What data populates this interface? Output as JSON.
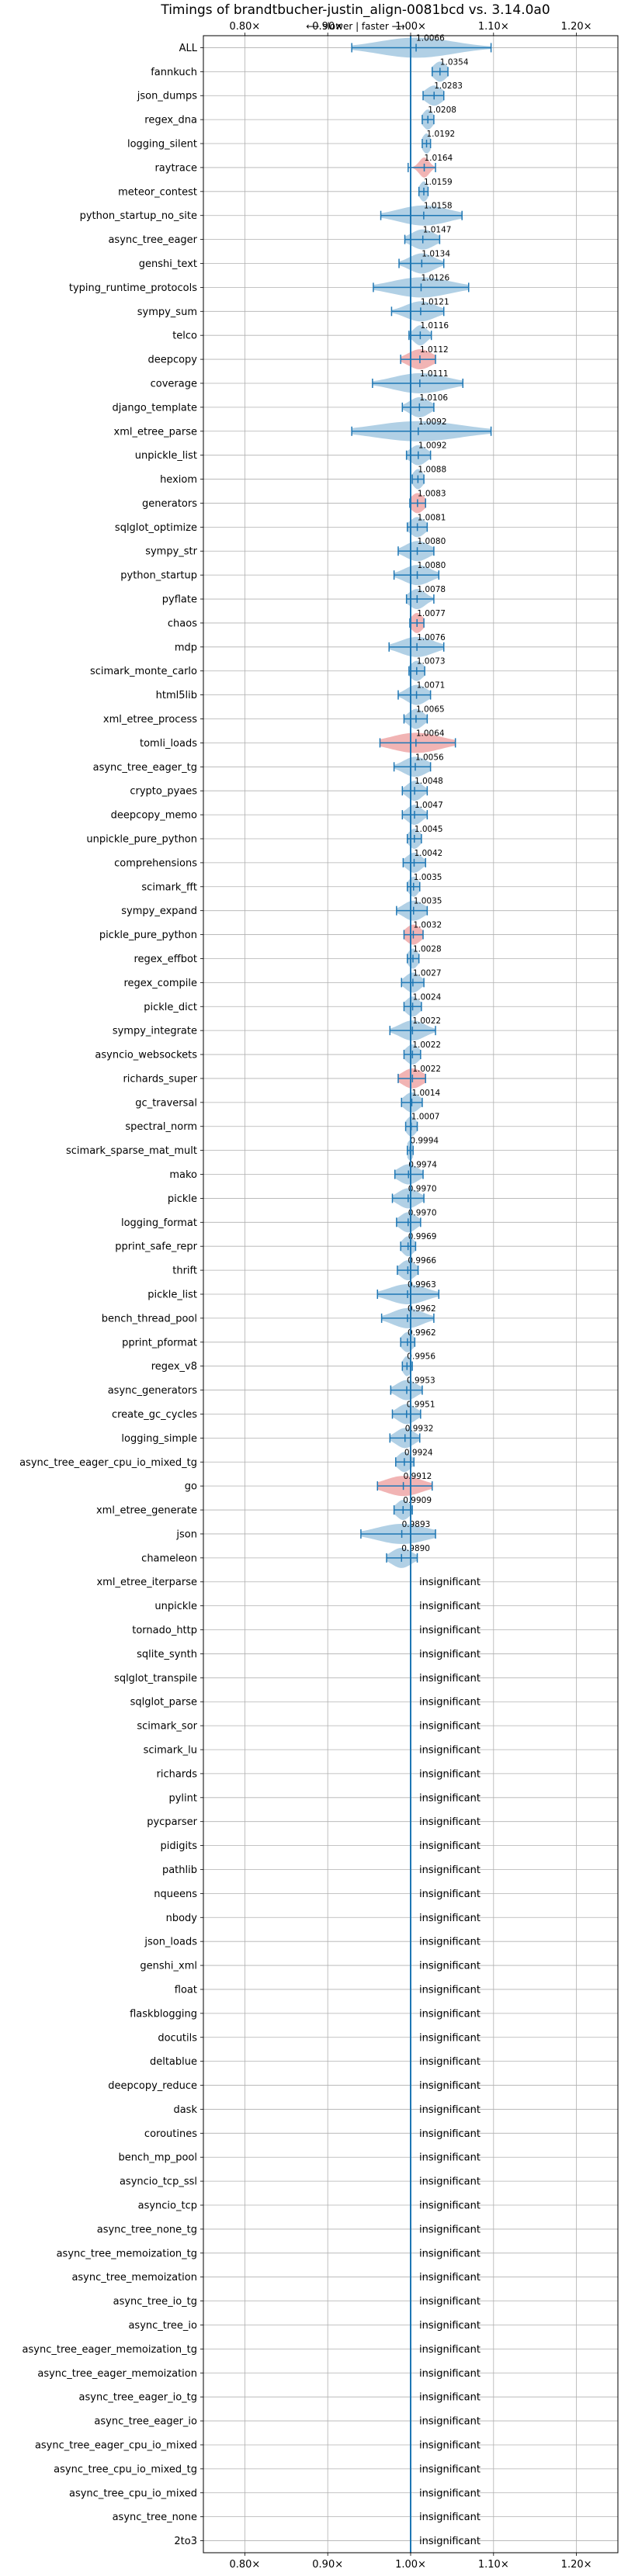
{
  "chart_data": {
    "type": "violin",
    "title": "Timings of brandtbucher-justin_align-0081bcd vs. 3.14.0a0",
    "subtitle": "⟵ slower | faster ⟶",
    "xlim": [
      0.75,
      1.25
    ],
    "x_ticks": [
      0.8,
      0.9,
      1.0,
      1.1,
      1.2
    ],
    "x_tick_labels": [
      "0.80×",
      "0.90×",
      "1.00×",
      "1.10×",
      "1.20×"
    ],
    "reference_line": 1.0,
    "grid": true,
    "colors": {
      "faster": "#1f77b4",
      "slower": "#d62728",
      "line": "#1f77b4"
    },
    "insignificant_label": "insignificant",
    "benchmarks": [
      {
        "name": "ALL",
        "value": 1.0066,
        "label": "1.0066",
        "lo": 0.929,
        "hi": 1.097,
        "spread": 0.045,
        "dir": "faster"
      },
      {
        "name": "fannkuch",
        "value": 1.0354,
        "label": "1.0354",
        "lo": 1.026,
        "hi": 1.045,
        "spread": 0.008,
        "dir": "faster"
      },
      {
        "name": "json_dumps",
        "value": 1.0283,
        "label": "1.0283",
        "lo": 1.015,
        "hi": 1.04,
        "spread": 0.01,
        "dir": "faster"
      },
      {
        "name": "regex_dna",
        "value": 1.0208,
        "label": "1.0208",
        "lo": 1.014,
        "hi": 1.028,
        "spread": 0.006,
        "dir": "faster"
      },
      {
        "name": "logging_silent",
        "value": 1.0192,
        "label": "1.0192",
        "lo": 1.014,
        "hi": 1.024,
        "spread": 0.005,
        "dir": "faster"
      },
      {
        "name": "raytrace",
        "value": 1.0164,
        "label": "1.0164",
        "lo": 0.997,
        "hi": 1.03,
        "spread": 0.006,
        "dir": "slower"
      },
      {
        "name": "meteor_contest",
        "value": 1.0159,
        "label": "1.0159",
        "lo": 1.01,
        "hi": 1.021,
        "spread": 0.005,
        "dir": "faster"
      },
      {
        "name": "python_startup_no_site",
        "value": 1.0158,
        "label": "1.0158",
        "lo": 0.964,
        "hi": 1.062,
        "spread": 0.03,
        "dir": "faster"
      },
      {
        "name": "async_tree_eager",
        "value": 1.0147,
        "label": "1.0147",
        "lo": 0.993,
        "hi": 1.035,
        "spread": 0.014,
        "dir": "faster"
      },
      {
        "name": "genshi_text",
        "value": 1.0134,
        "label": "1.0134",
        "lo": 0.986,
        "hi": 1.04,
        "spread": 0.015,
        "dir": "faster"
      },
      {
        "name": "typing_runtime_protocols",
        "value": 1.0126,
        "label": "1.0126",
        "lo": 0.955,
        "hi": 1.07,
        "spread": 0.035,
        "dir": "faster"
      },
      {
        "name": "sympy_sum",
        "value": 1.0121,
        "label": "1.0121",
        "lo": 0.977,
        "hi": 1.04,
        "spread": 0.018,
        "dir": "faster"
      },
      {
        "name": "telco",
        "value": 1.0116,
        "label": "1.0116",
        "lo": 0.998,
        "hi": 1.025,
        "spread": 0.008,
        "dir": "faster"
      },
      {
        "name": "deepcopy",
        "value": 1.0112,
        "label": "1.0112",
        "lo": 0.988,
        "hi": 1.03,
        "spread": 0.014,
        "dir": "slower"
      },
      {
        "name": "coverage",
        "value": 1.0111,
        "label": "1.0111",
        "lo": 0.954,
        "hi": 1.063,
        "spread": 0.032,
        "dir": "faster"
      },
      {
        "name": "django_template",
        "value": 1.0106,
        "label": "1.0106",
        "lo": 0.99,
        "hi": 1.028,
        "spread": 0.012,
        "dir": "faster"
      },
      {
        "name": "xml_etree_parse",
        "value": 1.0092,
        "label": "1.0092",
        "lo": 0.929,
        "hi": 1.097,
        "spread": 0.052,
        "dir": "faster"
      },
      {
        "name": "unpickle_list",
        "value": 1.0092,
        "label": "1.0092",
        "lo": 0.995,
        "hi": 1.024,
        "spread": 0.01,
        "dir": "faster"
      },
      {
        "name": "hexiom",
        "value": 1.0088,
        "label": "1.0088",
        "lo": 1.002,
        "hi": 1.016,
        "spread": 0.006,
        "dir": "faster"
      },
      {
        "name": "generators",
        "value": 1.0083,
        "label": "1.0083",
        "lo": 0.999,
        "hi": 1.018,
        "spread": 0.008,
        "dir": "slower"
      },
      {
        "name": "sqlglot_optimize",
        "value": 1.0081,
        "label": "1.0081",
        "lo": 0.996,
        "hi": 1.02,
        "spread": 0.009,
        "dir": "faster"
      },
      {
        "name": "sympy_str",
        "value": 1.008,
        "label": "1.0080",
        "lo": 0.985,
        "hi": 1.028,
        "spread": 0.014,
        "dir": "faster"
      },
      {
        "name": "python_startup",
        "value": 1.008,
        "label": "1.0080",
        "lo": 0.98,
        "hi": 1.034,
        "spread": 0.016,
        "dir": "faster"
      },
      {
        "name": "pyflate",
        "value": 1.0078,
        "label": "1.0078",
        "lo": 0.995,
        "hi": 1.028,
        "spread": 0.01,
        "dir": "faster"
      },
      {
        "name": "chaos",
        "value": 1.0077,
        "label": "1.0077",
        "lo": 0.999,
        "hi": 1.016,
        "spread": 0.007,
        "dir": "slower"
      },
      {
        "name": "mdp",
        "value": 1.0076,
        "label": "1.0076",
        "lo": 0.974,
        "hi": 1.04,
        "spread": 0.02,
        "dir": "faster"
      },
      {
        "name": "scimark_monte_carlo",
        "value": 1.0073,
        "label": "1.0073",
        "lo": 0.998,
        "hi": 1.017,
        "spread": 0.008,
        "dir": "faster"
      },
      {
        "name": "html5lib",
        "value": 1.0071,
        "label": "1.0071",
        "lo": 0.985,
        "hi": 1.024,
        "spread": 0.012,
        "dir": "faster"
      },
      {
        "name": "xml_etree_process",
        "value": 1.0065,
        "label": "1.0065",
        "lo": 0.992,
        "hi": 1.02,
        "spread": 0.009,
        "dir": "faster"
      },
      {
        "name": "tomli_loads",
        "value": 1.0064,
        "label": "1.0064",
        "lo": 0.963,
        "hi": 1.054,
        "spread": 0.03,
        "dir": "slower"
      },
      {
        "name": "async_tree_eager_tg",
        "value": 1.0056,
        "label": "1.0056",
        "lo": 0.98,
        "hi": 1.024,
        "spread": 0.014,
        "dir": "faster"
      },
      {
        "name": "crypto_pyaes",
        "value": 1.0048,
        "label": "1.0048",
        "lo": 0.99,
        "hi": 1.02,
        "spread": 0.009,
        "dir": "faster"
      },
      {
        "name": "deepcopy_memo",
        "value": 1.0047,
        "label": "1.0047",
        "lo": 0.99,
        "hi": 1.02,
        "spread": 0.009,
        "dir": "faster"
      },
      {
        "name": "unpickle_pure_python",
        "value": 1.0045,
        "label": "1.0045",
        "lo": 0.996,
        "hi": 1.013,
        "spread": 0.007,
        "dir": "faster"
      },
      {
        "name": "comprehensions",
        "value": 1.0042,
        "label": "1.0042",
        "lo": 0.991,
        "hi": 1.018,
        "spread": 0.009,
        "dir": "faster"
      },
      {
        "name": "scimark_fft",
        "value": 1.0035,
        "label": "1.0035",
        "lo": 0.996,
        "hi": 1.011,
        "spread": 0.006,
        "dir": "faster"
      },
      {
        "name": "sympy_expand",
        "value": 1.0035,
        "label": "1.0035",
        "lo": 0.983,
        "hi": 1.02,
        "spread": 0.012,
        "dir": "faster"
      },
      {
        "name": "pickle_pure_python",
        "value": 1.0032,
        "label": "1.0032",
        "lo": 0.992,
        "hi": 1.015,
        "spread": 0.009,
        "dir": "slower"
      },
      {
        "name": "regex_effbot",
        "value": 1.0028,
        "label": "1.0028",
        "lo": 0.996,
        "hi": 1.01,
        "spread": 0.006,
        "dir": "faster"
      },
      {
        "name": "regex_compile",
        "value": 1.0027,
        "label": "1.0027",
        "lo": 0.989,
        "hi": 1.016,
        "spread": 0.009,
        "dir": "faster"
      },
      {
        "name": "pickle_dict",
        "value": 1.0024,
        "label": "1.0024",
        "lo": 0.992,
        "hi": 1.013,
        "spread": 0.008,
        "dir": "faster"
      },
      {
        "name": "sympy_integrate",
        "value": 1.0022,
        "label": "1.0022",
        "lo": 0.975,
        "hi": 1.03,
        "spread": 0.015,
        "dir": "faster"
      },
      {
        "name": "asyncio_websockets",
        "value": 1.0022,
        "label": "1.0022",
        "lo": 0.992,
        "hi": 1.012,
        "spread": 0.008,
        "dir": "faster"
      },
      {
        "name": "richards_super",
        "value": 1.0022,
        "label": "1.0022",
        "lo": 0.985,
        "hi": 1.018,
        "spread": 0.012,
        "dir": "slower"
      },
      {
        "name": "gc_traversal",
        "value": 1.0014,
        "label": "1.0014",
        "lo": 0.989,
        "hi": 1.014,
        "spread": 0.009,
        "dir": "faster"
      },
      {
        "name": "spectral_norm",
        "value": 1.0007,
        "label": "1.0007",
        "lo": 0.994,
        "hi": 1.008,
        "spread": 0.006,
        "dir": "faster"
      },
      {
        "name": "scimark_sparse_mat_mult",
        "value": 0.9994,
        "label": "0.9994",
        "lo": 0.996,
        "hi": 1.003,
        "spread": 0.004,
        "dir": "faster"
      },
      {
        "name": "mako",
        "value": 0.9974,
        "label": "0.9974",
        "lo": 0.981,
        "hi": 1.015,
        "spread": 0.012,
        "dir": "faster"
      },
      {
        "name": "pickle",
        "value": 0.997,
        "label": "0.9970",
        "lo": 0.978,
        "hi": 1.016,
        "spread": 0.012,
        "dir": "faster"
      },
      {
        "name": "logging_format",
        "value": 0.997,
        "label": "0.9970",
        "lo": 0.983,
        "hi": 1.012,
        "spread": 0.01,
        "dir": "faster"
      },
      {
        "name": "pprint_safe_repr",
        "value": 0.9969,
        "label": "0.9969",
        "lo": 0.988,
        "hi": 1.006,
        "spread": 0.007,
        "dir": "faster"
      },
      {
        "name": "thrift",
        "value": 0.9966,
        "label": "0.9966",
        "lo": 0.984,
        "hi": 1.009,
        "spread": 0.009,
        "dir": "faster"
      },
      {
        "name": "pickle_list",
        "value": 0.9963,
        "label": "0.9963",
        "lo": 0.96,
        "hi": 1.034,
        "spread": 0.022,
        "dir": "faster"
      },
      {
        "name": "bench_thread_pool",
        "value": 0.9962,
        "label": "0.9962",
        "lo": 0.965,
        "hi": 1.028,
        "spread": 0.018,
        "dir": "faster"
      },
      {
        "name": "pprint_pformat",
        "value": 0.9962,
        "label": "0.9962",
        "lo": 0.988,
        "hi": 1.005,
        "spread": 0.007,
        "dir": "faster"
      },
      {
        "name": "regex_v8",
        "value": 0.9956,
        "label": "0.9956",
        "lo": 0.99,
        "hi": 1.002,
        "spread": 0.005,
        "dir": "faster"
      },
      {
        "name": "async_generators",
        "value": 0.9953,
        "label": "0.9953",
        "lo": 0.976,
        "hi": 1.014,
        "spread": 0.012,
        "dir": "faster"
      },
      {
        "name": "create_gc_cycles",
        "value": 0.9951,
        "label": "0.9951",
        "lo": 0.978,
        "hi": 1.012,
        "spread": 0.011,
        "dir": "faster"
      },
      {
        "name": "logging_simple",
        "value": 0.9932,
        "label": "0.9932",
        "lo": 0.975,
        "hi": 1.011,
        "spread": 0.011,
        "dir": "faster"
      },
      {
        "name": "async_tree_eager_cpu_io_mixed_tg",
        "value": 0.9924,
        "label": "0.9924",
        "lo": 0.982,
        "hi": 1.004,
        "spread": 0.008,
        "dir": "faster"
      },
      {
        "name": "go",
        "value": 0.9912,
        "label": "0.9912",
        "lo": 0.96,
        "hi": 1.026,
        "spread": 0.022,
        "dir": "slower"
      },
      {
        "name": "xml_etree_generate",
        "value": 0.9909,
        "label": "0.9909",
        "lo": 0.98,
        "hi": 1.002,
        "spread": 0.008,
        "dir": "faster"
      },
      {
        "name": "json",
        "value": 0.9893,
        "label": "0.9893",
        "lo": 0.94,
        "hi": 1.03,
        "spread": 0.03,
        "dir": "faster"
      },
      {
        "name": "chameleon",
        "value": 0.989,
        "label": "0.9890",
        "lo": 0.971,
        "hi": 1.008,
        "spread": 0.012,
        "dir": "faster"
      },
      {
        "name": "xml_etree_iterparse",
        "insignificant": true
      },
      {
        "name": "unpickle",
        "insignificant": true
      },
      {
        "name": "tornado_http",
        "insignificant": true
      },
      {
        "name": "sqlite_synth",
        "insignificant": true
      },
      {
        "name": "sqlglot_transpile",
        "insignificant": true
      },
      {
        "name": "sqlglot_parse",
        "insignificant": true
      },
      {
        "name": "scimark_sor",
        "insignificant": true
      },
      {
        "name": "scimark_lu",
        "insignificant": true
      },
      {
        "name": "richards",
        "insignificant": true
      },
      {
        "name": "pylint",
        "insignificant": true
      },
      {
        "name": "pycparser",
        "insignificant": true
      },
      {
        "name": "pidigits",
        "insignificant": true
      },
      {
        "name": "pathlib",
        "insignificant": true
      },
      {
        "name": "nqueens",
        "insignificant": true
      },
      {
        "name": "nbody",
        "insignificant": true
      },
      {
        "name": "json_loads",
        "insignificant": true
      },
      {
        "name": "genshi_xml",
        "insignificant": true
      },
      {
        "name": "float",
        "insignificant": true
      },
      {
        "name": "flaskblogging",
        "insignificant": true
      },
      {
        "name": "docutils",
        "insignificant": true
      },
      {
        "name": "deltablue",
        "insignificant": true
      },
      {
        "name": "deepcopy_reduce",
        "insignificant": true
      },
      {
        "name": "dask",
        "insignificant": true
      },
      {
        "name": "coroutines",
        "insignificant": true
      },
      {
        "name": "bench_mp_pool",
        "insignificant": true
      },
      {
        "name": "asyncio_tcp_ssl",
        "insignificant": true
      },
      {
        "name": "asyncio_tcp",
        "insignificant": true
      },
      {
        "name": "async_tree_none_tg",
        "insignificant": true
      },
      {
        "name": "async_tree_memoization_tg",
        "insignificant": true
      },
      {
        "name": "async_tree_memoization",
        "insignificant": true
      },
      {
        "name": "async_tree_io_tg",
        "insignificant": true
      },
      {
        "name": "async_tree_io",
        "insignificant": true
      },
      {
        "name": "async_tree_eager_memoization_tg",
        "insignificant": true
      },
      {
        "name": "async_tree_eager_memoization",
        "insignificant": true
      },
      {
        "name": "async_tree_eager_io_tg",
        "insignificant": true
      },
      {
        "name": "async_tree_eager_io",
        "insignificant": true
      },
      {
        "name": "async_tree_eager_cpu_io_mixed",
        "insignificant": true
      },
      {
        "name": "async_tree_cpu_io_mixed_tg",
        "insignificant": true
      },
      {
        "name": "async_tree_cpu_io_mixed",
        "insignificant": true
      },
      {
        "name": "async_tree_none",
        "insignificant": true
      },
      {
        "name": "2to3",
        "insignificant": true
      }
    ]
  }
}
